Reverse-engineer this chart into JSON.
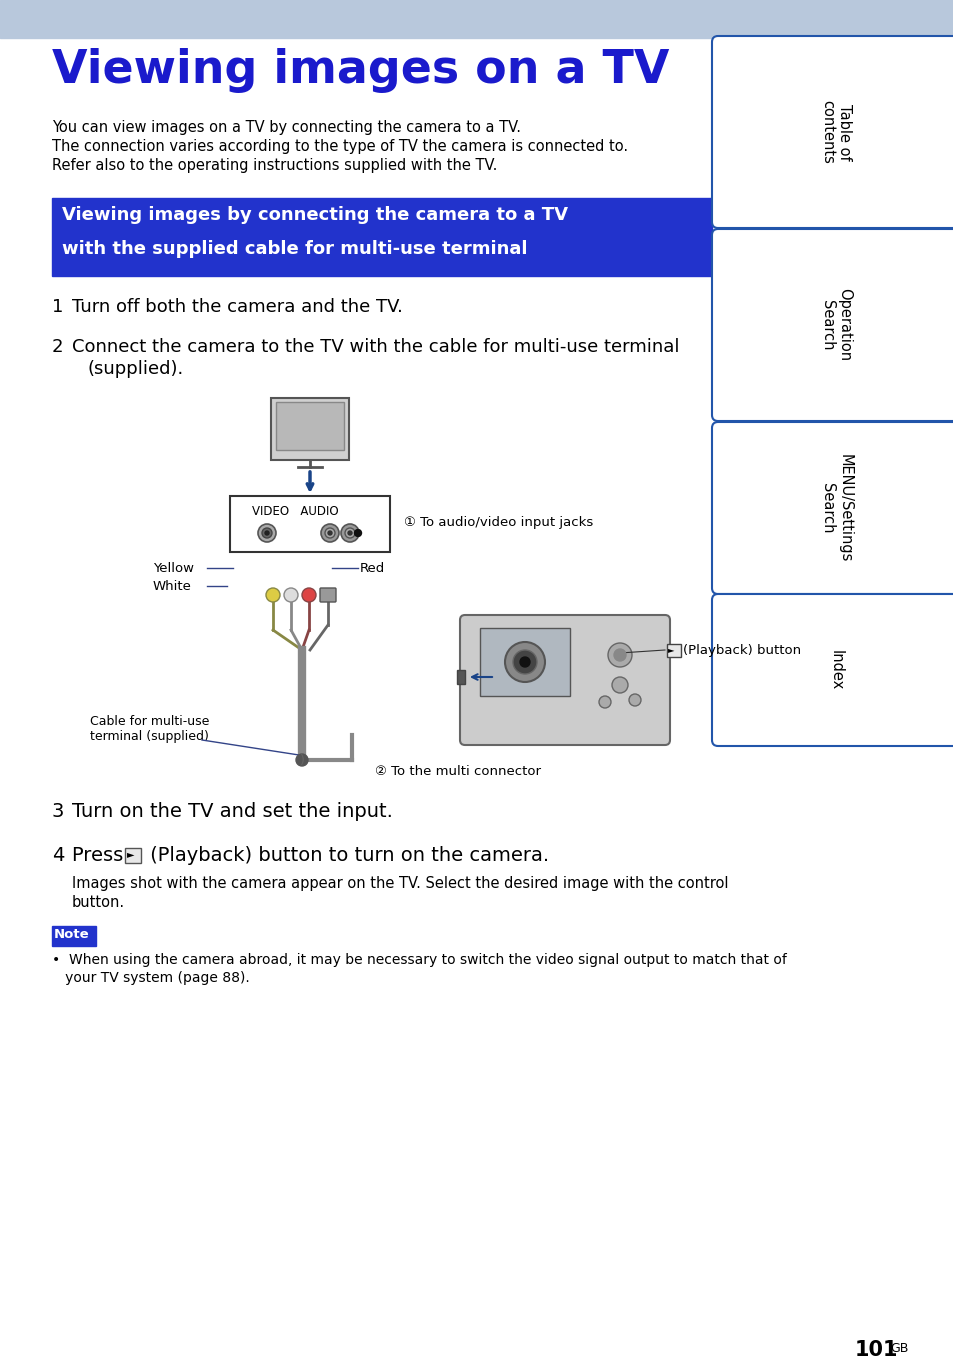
{
  "page_bg": "#ffffff",
  "header_bg": "#b8c8dc",
  "title_text": "Viewing images on a TV",
  "title_color": "#1a1acc",
  "section_bg": "#2233cc",
  "section_text_color": "#ffffff",
  "section_title_line1": "Viewing images by connecting the camera to a TV",
  "section_title_line2": "with the supplied cable for multi-use terminal",
  "intro_lines": [
    "You can view images on a TV by connecting the camera to a TV.",
    "The connection varies according to the type of TV the camera is connected to.",
    "Refer also to the operating instructions supplied with the TV."
  ],
  "sidebar_items": [
    "Table of\ncontents",
    "Operation\nSearch",
    "MENU/Settings\nSearch",
    "Index"
  ],
  "sidebar_border": "#2255aa",
  "page_number": "101",
  "page_suffix": "GB",
  "arrow_color": "#1a4488",
  "label1_text": "① To audio/video input jacks",
  "label2_text": "② To the multi connector",
  "yellow_label": "Yellow",
  "white_label": "White",
  "red_label": "Red",
  "playback_label": "►| (Playback) button",
  "cable_label_line1": "Cable for multi-use",
  "cable_label_line2": "terminal (supplied)",
  "note_label": "Note",
  "note_text_line1": "•  When using the camera abroad, it may be necessary to switch the video signal output to match that of",
  "note_text_line2": "   your TV system (page 88).",
  "step4_sub_line1": "Images shot with the camera appear on the TV. Select the desired image with the control",
  "step4_sub_line2": "button."
}
